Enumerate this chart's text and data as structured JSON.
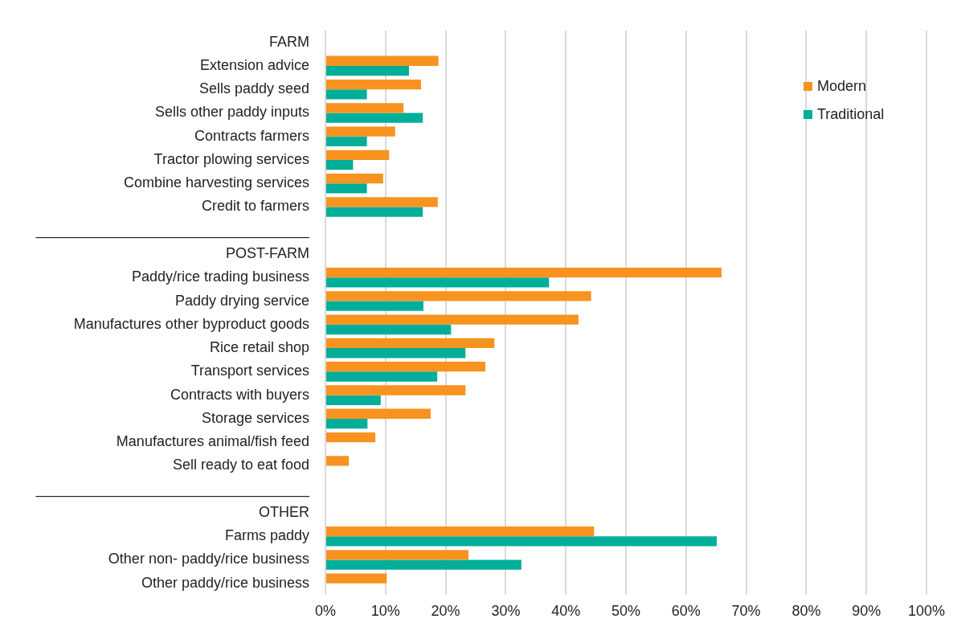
{
  "chart_data": {
    "type": "bar",
    "orientation": "horizontal",
    "categories": [
      "FARM",
      "Extension advice",
      "Sells paddy seed",
      "Sells other paddy inputs",
      "Contracts farmers",
      "Tractor plowing services",
      "Combine harvesting services",
      "Credit to farmers",
      "__________________________________",
      "POST-FARM",
      "Paddy/rice trading business",
      "Paddy drying service",
      "Manufactures other byproduct goods",
      "Rice retail shop",
      "Transport services",
      "Contracts with buyers",
      "Storage services",
      "Manufactures animal/fish feed",
      "Sell ready to eat food",
      "__________________________________",
      "OTHER",
      "Farms paddy",
      "Other non- paddy/rice business",
      "Other paddy/rice business"
    ],
    "series": [
      {
        "name": "Modern",
        "color": "#f7931e",
        "values": [
          null,
          18.8,
          15.9,
          13.0,
          11.6,
          10.6,
          9.6,
          18.7,
          null,
          null,
          65.9,
          44.2,
          42.1,
          28.1,
          26.6,
          23.3,
          17.5,
          8.3,
          3.9,
          null,
          null,
          44.7,
          23.8,
          10.2
        ]
      },
      {
        "name": "Traditional",
        "color": "#00ae9a",
        "values": [
          null,
          13.9,
          6.9,
          16.2,
          6.9,
          4.6,
          6.9,
          16.2,
          null,
          null,
          37.2,
          16.3,
          20.9,
          23.3,
          18.6,
          9.2,
          7.0,
          null,
          null,
          null,
          null,
          65.1,
          32.6,
          null
        ]
      }
    ],
    "xlim": [
      0,
      100
    ],
    "xticks": [
      {
        "value": 0,
        "label": "0%"
      },
      {
        "value": 10,
        "label": "10%"
      },
      {
        "value": 20,
        "label": "20%"
      },
      {
        "value": 30,
        "label": "30%"
      },
      {
        "value": 40,
        "label": "40%"
      },
      {
        "value": 50,
        "label": "50%"
      },
      {
        "value": 60,
        "label": "60%"
      },
      {
        "value": 70,
        "label": "70%"
      },
      {
        "value": 80,
        "label": "80%"
      },
      {
        "value": 90,
        "label": "90%"
      },
      {
        "value": 100,
        "label": "100%"
      }
    ],
    "grid": "x",
    "legend": "top right"
  }
}
